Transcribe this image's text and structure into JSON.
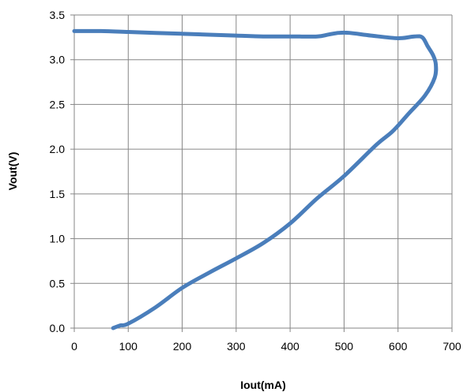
{
  "chart_data": {
    "type": "line",
    "title": "",
    "xlabel": "Iout(mA)",
    "ylabel": "Vout(V)",
    "xlim": [
      0,
      700
    ],
    "ylim": [
      0,
      3.5
    ],
    "x_ticks": [
      0,
      100,
      200,
      300,
      400,
      500,
      600,
      700
    ],
    "y_ticks": [
      0.0,
      0.5,
      1.0,
      1.5,
      2.0,
      2.5,
      3.0,
      3.5
    ],
    "x_tick_labels": [
      "0",
      "100",
      "200",
      "300",
      "400",
      "500",
      "600",
      "700"
    ],
    "y_tick_labels": [
      "0.0",
      "0.5",
      "1.0",
      "1.5",
      "2.0",
      "2.5",
      "3.0",
      "3.5"
    ],
    "grid": true,
    "legend": "none",
    "series": [
      {
        "color": "#4a7ebb",
        "x": [
          0,
          50,
          100,
          150,
          200,
          250,
          300,
          350,
          400,
          450,
          470,
          490,
          510,
          550,
          600,
          630,
          645,
          655,
          665,
          670,
          668,
          650,
          620,
          590,
          560,
          500,
          450,
          400,
          350,
          300,
          250,
          200,
          150,
          100,
          85,
          72
        ],
        "y": [
          3.32,
          3.32,
          3.31,
          3.3,
          3.29,
          3.28,
          3.27,
          3.26,
          3.26,
          3.26,
          3.28,
          3.3,
          3.3,
          3.27,
          3.24,
          3.26,
          3.25,
          3.15,
          3.05,
          2.95,
          2.8,
          2.6,
          2.4,
          2.2,
          2.05,
          1.7,
          1.45,
          1.17,
          0.95,
          0.78,
          0.62,
          0.45,
          0.23,
          0.05,
          0.03,
          0.0
        ]
      }
    ]
  }
}
